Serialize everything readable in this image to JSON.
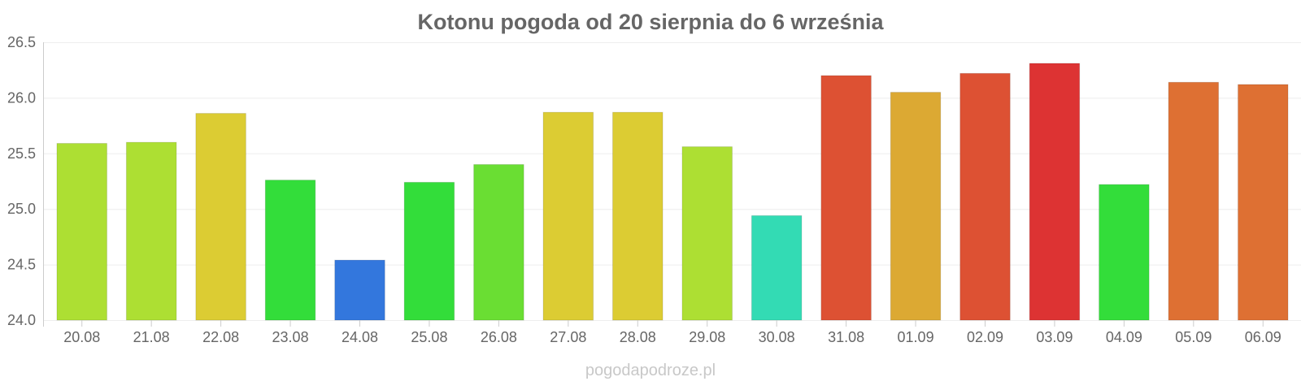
{
  "chart_data": {
    "type": "bar",
    "title": "Kotonu pogoda od 20 sierpnia do 6 września",
    "xlabel": "",
    "ylabel": "",
    "categories": [
      "20.08",
      "21.08",
      "22.08",
      "23.08",
      "24.08",
      "25.08",
      "26.08",
      "27.08",
      "28.08",
      "29.08",
      "30.08",
      "31.08",
      "01.09",
      "02.09",
      "03.09",
      "04.09",
      "05.09",
      "06.09"
    ],
    "values": [
      25.59,
      25.6,
      25.86,
      25.26,
      24.54,
      25.24,
      25.4,
      25.87,
      25.87,
      25.56,
      24.94,
      26.2,
      26.05,
      26.22,
      26.31,
      25.22,
      26.14,
      26.12
    ],
    "colors": [
      "#addf33",
      "#addf33",
      "#dccc33",
      "#33dd3a",
      "#3377dd",
      "#33dd3a",
      "#6ade33",
      "#dccc33",
      "#dccc33",
      "#addf33",
      "#33dbb4",
      "#dd5133",
      "#dca933",
      "#dd5133",
      "#dd3333",
      "#33dd3a",
      "#de7033",
      "#de7033"
    ],
    "ylim": [
      24.0,
      26.5
    ],
    "yticks": [
      "24.0",
      "24.5",
      "25.0",
      "25.5",
      "26.0",
      "26.5"
    ],
    "grid": true,
    "legend": "none"
  },
  "watermark": "pogodapodroze.pl"
}
